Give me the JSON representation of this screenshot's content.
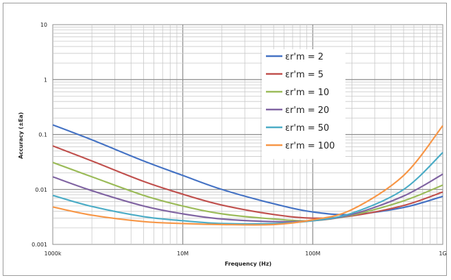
{
  "chart_data": {
    "type": "line",
    "title": "",
    "xlabel": "Frequency (Hz)",
    "ylabel": "Accuracy (±Ea)",
    "x_scale": "log",
    "y_scale": "log",
    "xlim": [
      1000000,
      1000000000
    ],
    "ylim": [
      0.001,
      10
    ],
    "grid": true,
    "legend_position": "top-right",
    "x_ticks": [
      {
        "value": 1000000,
        "label": "1000k"
      },
      {
        "value": 10000000,
        "label": "10M"
      },
      {
        "value": 100000000,
        "label": "100M"
      },
      {
        "value": 1000000000,
        "label": "1G"
      }
    ],
    "y_ticks": [
      {
        "value": 0.001,
        "label": "0.001"
      },
      {
        "value": 0.01,
        "label": "0.01"
      },
      {
        "value": 0.1,
        "label": "0.1"
      },
      {
        "value": 1,
        "label": "1"
      },
      {
        "value": 10,
        "label": "10"
      }
    ],
    "x": [
      1000000,
      2000000,
      5000000,
      10000000,
      20000000,
      50000000,
      100000000,
      200000000,
      500000000,
      1000000000
    ],
    "series": [
      {
        "name": "εr'm = 2",
        "color": "#4472C4",
        "values": [
          0.15,
          0.08,
          0.033,
          0.018,
          0.01,
          0.0055,
          0.0039,
          0.0035,
          0.0047,
          0.0075
        ]
      },
      {
        "name": "εr'm = 5",
        "color": "#C0504D",
        "values": [
          0.062,
          0.033,
          0.014,
          0.0082,
          0.0052,
          0.0035,
          0.003,
          0.0033,
          0.0051,
          0.009
        ]
      },
      {
        "name": "εr'm = 10",
        "color": "#9BBB59",
        "values": [
          0.031,
          0.017,
          0.0078,
          0.005,
          0.0036,
          0.0029,
          0.0027,
          0.0034,
          0.0062,
          0.012
        ]
      },
      {
        "name": "εr'm = 20",
        "color": "#8064A2",
        "values": [
          0.017,
          0.0095,
          0.005,
          0.0036,
          0.0029,
          0.0026,
          0.0027,
          0.0035,
          0.0076,
          0.019
        ]
      },
      {
        "name": "εr'm = 50",
        "color": "#4BACC6",
        "values": [
          0.0078,
          0.0049,
          0.0032,
          0.0027,
          0.0024,
          0.0024,
          0.0027,
          0.0037,
          0.01,
          0.047
        ]
      },
      {
        "name": "εr'm = 100",
        "color": "#F79646",
        "values": [
          0.0048,
          0.0034,
          0.0026,
          0.0024,
          0.0023,
          0.0023,
          0.0028,
          0.0043,
          0.018,
          0.145
        ]
      }
    ]
  }
}
